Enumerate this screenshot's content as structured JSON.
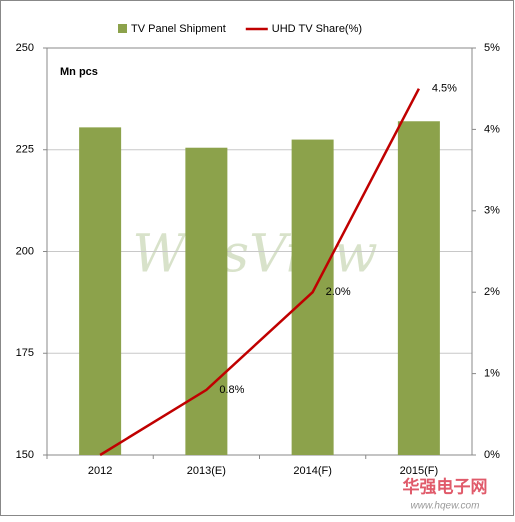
{
  "chart_data": {
    "type": "bar_line",
    "y_unit_label": "Mn pcs",
    "categories": [
      "2012",
      "2013(E)",
      "2014(F)",
      "2015(F)"
    ],
    "series": [
      {
        "name": "TV Panel Shipment",
        "type": "bar",
        "color": "#8ca24b",
        "values": [
          230.5,
          225.5,
          227.5,
          232
        ]
      },
      {
        "name": "UHD TV Share(%)",
        "type": "line",
        "color": "#c00000",
        "axis": "y2",
        "values": [
          0,
          0.8,
          2.0,
          4.5
        ],
        "value_labels": [
          null,
          "0.8%",
          "2.0%",
          "4.5%"
        ]
      }
    ],
    "ylim": [
      150,
      250
    ],
    "yticks": [
      150,
      175,
      200,
      225,
      250
    ],
    "y2lim": [
      0,
      5
    ],
    "y2ticks": [
      {
        "value": 0,
        "label": "0%"
      },
      {
        "value": 1,
        "label": "1%"
      },
      {
        "value": 2,
        "label": "2%"
      },
      {
        "value": 3,
        "label": "3%"
      },
      {
        "value": 4,
        "label": "4%"
      },
      {
        "value": 5,
        "label": "5%"
      }
    ],
    "grid": true,
    "legend": "top"
  },
  "watermark": {
    "text": "WitsView",
    "logo": "华强电子网",
    "logo_url": "www.hqew.com"
  }
}
